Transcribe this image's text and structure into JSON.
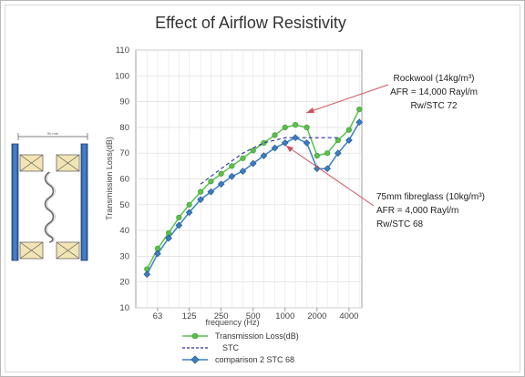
{
  "chart_data": {
    "type": "line",
    "title": "Effect of Airflow Resistivity",
    "xlabel": "frequency (Hz)",
    "ylabel": "Transmission Loss(dB)",
    "ylim": [
      10,
      110
    ],
    "yticks": [
      10,
      20,
      30,
      40,
      50,
      60,
      70,
      80,
      90,
      100,
      110
    ],
    "xticks": [
      "63",
      "125",
      "250",
      "500",
      "1000",
      "2000",
      "4000"
    ],
    "x": [
      50,
      63,
      80,
      100,
      125,
      160,
      200,
      250,
      315,
      400,
      500,
      630,
      800,
      1000,
      1250,
      1600,
      2000,
      2500,
      3150,
      4000,
      5000
    ],
    "grid": true,
    "legend_position": "bottom",
    "series": [
      {
        "name": "Transmission Loss(dB)",
        "color": "#59c04a",
        "marker": "circle",
        "values": [
          25,
          33,
          39,
          45,
          50,
          55,
          59,
          62,
          65,
          68,
          71,
          74,
          77,
          80,
          81,
          80,
          69,
          70,
          75,
          79,
          87
        ]
      },
      {
        "name": "STC",
        "color": "#2b2b9e",
        "dashed": true,
        "values": [
          null,
          null,
          null,
          null,
          null,
          58,
          61,
          64,
          67,
          70,
          72,
          74,
          75,
          76,
          76,
          76,
          76,
          76,
          76,
          null,
          null
        ]
      },
      {
        "name": "comparison 2 STC 68",
        "color": "#3a7fc4",
        "marker": "diamond",
        "values": [
          23,
          31,
          37,
          42,
          47,
          52,
          55,
          58,
          61,
          63,
          66,
          69,
          72,
          74,
          76,
          74,
          64,
          64,
          70,
          75,
          82
        ]
      }
    ],
    "annotations": [
      {
        "lines": [
          "Rockwool (14kg/m³)",
          "AFR = 14,000 Rayl/m",
          "Rw/STC 72"
        ]
      },
      {
        "lines": [
          "75mm fibreglass (10kg/m³)",
          "AFR = 4,000 Rayl/m",
          "Rw/STC 68"
        ]
      }
    ]
  },
  "diagram": {
    "label": "90 mm"
  }
}
